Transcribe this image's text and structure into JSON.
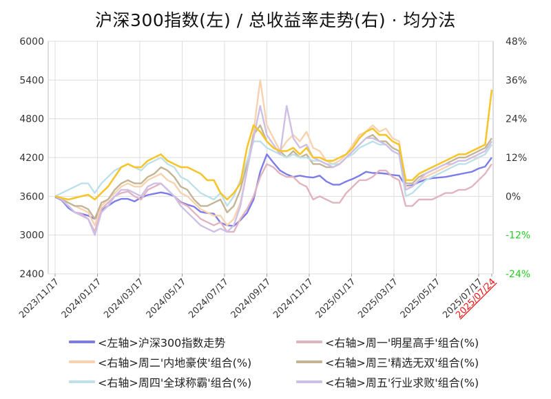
{
  "chart_data": {
    "type": "line",
    "title": "沪深300指数(左) / 总收益率走势(右) · 均分法",
    "left_axis": {
      "ticks": [
        "2400",
        "3000",
        "3600",
        "4200",
        "4800",
        "5400",
        "6000"
      ],
      "ylim": [
        2400,
        6000
      ]
    },
    "right_axis": {
      "ticks": [
        {
          "label": "-24%",
          "color": "#22cc22"
        },
        {
          "label": "-12%",
          "color": "#22cc22"
        },
        {
          "label": "0%",
          "color": "#333333"
        },
        {
          "label": "12%",
          "color": "#333333"
        },
        {
          "label": "24%",
          "color": "#333333"
        },
        {
          "label": "36%",
          "color": "#333333"
        },
        {
          "label": "48%",
          "color": "#333333"
        }
      ],
      "ylim": [
        -24,
        48
      ]
    },
    "x_ticks": [
      {
        "label": "2023/11/17",
        "color": "#333333"
      },
      {
        "label": "2024/01/17",
        "color": "#333333"
      },
      {
        "label": "2024/03/17",
        "color": "#333333"
      },
      {
        "label": "2024/05/17",
        "color": "#333333"
      },
      {
        "label": "2024/07/17",
        "color": "#333333"
      },
      {
        "label": "2024/09/17",
        "color": "#333333"
      },
      {
        "label": "2024/11/17",
        "color": "#333333"
      },
      {
        "label": "2025/01/17",
        "color": "#333333"
      },
      {
        "label": "2025/03/17",
        "color": "#333333"
      },
      {
        "label": "2025/05/17",
        "color": "#333333"
      },
      {
        "label": "2025/07/17",
        "color": "#333333"
      },
      {
        "label": "2025/07/24",
        "color": "#ee1111",
        "underline": true
      }
    ],
    "x_range": [
      "2023/11/17",
      "2025/07/24"
    ],
    "grid": true,
    "series": [
      {
        "name": "<左轴>沪深300指数走势",
        "axis": "left",
        "color": "#7b7bea",
        "values": [
          3590,
          3540,
          3420,
          3350,
          3330,
          3300,
          3250,
          3380,
          3450,
          3520,
          3560,
          3560,
          3520,
          3580,
          3620,
          3640,
          3660,
          3640,
          3600,
          3510,
          3470,
          3440,
          3360,
          3340,
          3330,
          3190,
          3150,
          3140,
          3230,
          3340,
          3550,
          3980,
          4250,
          4120,
          4000,
          3940,
          3900,
          3920,
          3900,
          3890,
          3920,
          3830,
          3780,
          3780,
          3830,
          3870,
          3920,
          3980,
          3960,
          3960,
          3950,
          3930,
          3920,
          3760,
          3770,
          3820,
          3860,
          3880,
          3890,
          3900,
          3920,
          3940,
          3960,
          3980,
          4030,
          4060,
          4200
        ]
      },
      {
        "name": "<右轴>周一'明星高手'组合(%)",
        "axis": "right",
        "color": "#e0b3bf",
        "values": [
          0,
          -1,
          -3,
          -5,
          -5.5,
          -7,
          -11,
          -4,
          -2,
          0,
          1,
          1.5,
          0,
          -1,
          2,
          3,
          4,
          2,
          0,
          -2,
          -3,
          -5,
          -7,
          -8,
          -9,
          -8,
          -11,
          -11,
          -7,
          -4,
          0,
          6,
          10,
          9,
          7,
          6,
          6,
          4,
          3,
          -1,
          0,
          -1,
          -2,
          -2,
          1,
          3,
          5,
          5,
          6,
          8,
          8,
          6,
          5,
          -3,
          -3,
          -1,
          -1,
          -1,
          0,
          1,
          1,
          2,
          2,
          3,
          5,
          7,
          10
        ]
      },
      {
        "name": "<右轴>周二'内地豪侠'组合(%)",
        "axis": "right",
        "color": "#f8d2ae",
        "values": [
          0,
          -0.5,
          -2,
          -3,
          -4,
          -5,
          -9,
          -3,
          -1,
          1,
          3,
          4,
          3,
          3,
          5,
          6,
          7,
          5,
          4,
          1,
          0,
          -2,
          -4,
          -5,
          -6,
          -6,
          -9,
          -7,
          -2,
          8,
          20,
          36,
          22,
          18,
          14,
          17,
          19,
          17,
          20,
          15,
          14,
          11,
          10,
          11,
          13,
          16,
          19,
          20,
          22,
          20,
          21,
          18,
          17,
          3,
          3,
          5,
          6,
          7,
          8,
          9,
          10,
          11,
          11,
          12,
          12,
          13,
          16
        ]
      },
      {
        "name": "<右轴>周三'精选无双'组合(%)",
        "axis": "right",
        "color": "#c3b495",
        "values": [
          0,
          -1,
          -2,
          -3,
          -3,
          -4,
          -7,
          -2,
          -1,
          2,
          4,
          5,
          4,
          4,
          6,
          7,
          9,
          8,
          6,
          3,
          2,
          -1,
          -3,
          -3,
          -2,
          -1,
          -5,
          -3,
          2,
          10,
          19,
          22,
          17,
          15,
          14,
          12,
          14,
          12,
          13,
          10,
          10,
          9,
          9,
          10,
          12,
          14,
          16,
          18,
          19,
          17,
          17,
          15,
          14,
          4,
          4,
          6,
          7,
          8,
          9,
          10,
          11,
          12,
          12,
          13,
          14,
          15,
          18
        ]
      },
      {
        "name": "<右轴>周四'全球称霸'组合(%)",
        "axis": "right",
        "color": "#bde0e8",
        "values": [
          0,
          1,
          2,
          3,
          4,
          4,
          1,
          4,
          6,
          8,
          9,
          10,
          9,
          8,
          10,
          11,
          12,
          10,
          9,
          6,
          5,
          3,
          1,
          0,
          -1,
          1,
          -3,
          0,
          5,
          11,
          17,
          17,
          15,
          14,
          13,
          12,
          13,
          12,
          12,
          11,
          11,
          10,
          10,
          10,
          12,
          13,
          15,
          16,
          17,
          16,
          16,
          14,
          13,
          0,
          1,
          3,
          5,
          6,
          7,
          8,
          9,
          10,
          10,
          11,
          12,
          13,
          16
        ]
      },
      {
        "name": "<右轴>周五'行业求败'组合(%)",
        "axis": "right",
        "color": "#cdbfe6",
        "values": [
          0,
          -1,
          -3,
          -5,
          -6,
          -7,
          -12,
          -5,
          -3,
          0,
          2,
          2,
          1,
          0,
          3,
          4,
          4,
          2,
          0,
          -3,
          -5,
          -7,
          -9,
          -10,
          -11,
          -10,
          -11,
          -9,
          -3,
          8,
          18,
          28,
          19,
          16,
          13,
          28,
          18,
          15,
          16,
          12,
          11,
          10,
          9,
          10,
          12,
          14,
          16,
          18,
          18,
          17,
          16,
          14,
          13,
          2,
          3,
          5,
          7,
          8,
          9,
          10,
          10,
          11,
          11,
          12,
          13,
          14,
          17
        ]
      },
      {
        "name": "<右轴>总收益率走势",
        "axis": "right",
        "color": "#f5c52b",
        "legend": false,
        "values": [
          0,
          -0.5,
          -1,
          -0.5,
          0,
          0.5,
          -1,
          1,
          3,
          6,
          9,
          10,
          9,
          9,
          11,
          12,
          13,
          11,
          10,
          9,
          9,
          8,
          7,
          5,
          5,
          1,
          -1,
          1,
          4,
          15,
          22,
          20,
          17,
          15,
          14,
          14,
          15,
          13,
          15,
          12,
          12,
          11,
          11,
          12,
          13,
          15,
          18,
          20,
          21,
          19,
          19,
          17,
          16,
          5,
          5,
          7,
          8,
          9,
          10,
          11,
          12,
          13,
          13,
          14,
          15,
          16,
          33
        ]
      }
    ]
  }
}
